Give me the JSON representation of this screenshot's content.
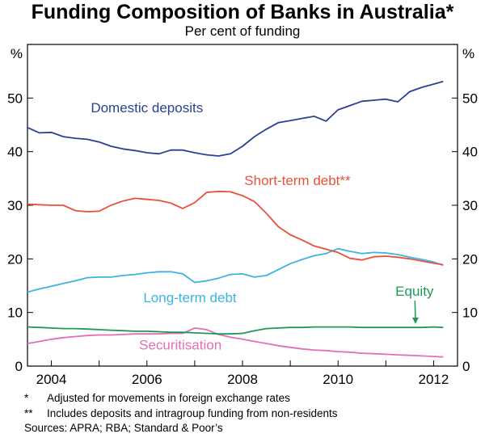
{
  "title": "Funding Composition of Banks in Australia*",
  "subtitle": "Per cent of funding",
  "footnotes": [
    {
      "mark": "*",
      "text": "Adjusted for movements in foreign exchange rates"
    },
    {
      "mark": "**",
      "text": "Includes deposits and intragroup funding from non-residents"
    }
  ],
  "sources": "Sources: APRA; RBA; Standard & Poor’s",
  "chart_data": {
    "type": "line",
    "ylabel_left": "%",
    "ylabel_right": "%",
    "ylim": [
      0,
      60
    ],
    "yticks": [
      0,
      10,
      20,
      30,
      40,
      50
    ],
    "xlim": [
      2003.5,
      2012.5
    ],
    "xticks": [
      2004,
      2006,
      2008,
      2010,
      2012
    ],
    "xtick_labels": [
      "2004",
      "2006",
      "2008",
      "2010",
      "2012"
    ],
    "grid": false,
    "series": [
      {
        "name": "Domestic deposits",
        "color": "#2b3f94",
        "x": [
          2003.5,
          2003.75,
          2004,
          2004.25,
          2004.5,
          2004.75,
          2005,
          2005.25,
          2005.5,
          2005.75,
          2006,
          2006.25,
          2006.5,
          2006.75,
          2007,
          2007.25,
          2007.5,
          2007.75,
          2008,
          2008.25,
          2008.5,
          2008.75,
          2009,
          2009.25,
          2009.5,
          2009.75,
          2010,
          2010.25,
          2010.5,
          2010.75,
          2011,
          2011.25,
          2011.5,
          2011.75,
          2012,
          2012.2
        ],
        "y": [
          44.5,
          43.5,
          43.6,
          42.8,
          42.5,
          42.3,
          41.8,
          41.0,
          40.5,
          40.2,
          39.8,
          39.6,
          40.3,
          40.3,
          39.8,
          39.4,
          39.2,
          39.6,
          41.0,
          42.8,
          44.2,
          45.4,
          45.8,
          46.2,
          46.6,
          45.7,
          47.8,
          48.6,
          49.4,
          49.6,
          49.8,
          49.3,
          51.2,
          52.0,
          52.6,
          53.1
        ]
      },
      {
        "name": "Short-term debt**",
        "color": "#e8503e",
        "x": [
          2003.5,
          2003.75,
          2004,
          2004.25,
          2004.5,
          2004.75,
          2005,
          2005.25,
          2005.5,
          2005.75,
          2006,
          2006.25,
          2006.5,
          2006.75,
          2007,
          2007.25,
          2007.5,
          2007.75,
          2008,
          2008.25,
          2008.5,
          2008.75,
          2009,
          2009.25,
          2009.5,
          2009.75,
          2010,
          2010.25,
          2010.5,
          2010.75,
          2011,
          2011.25,
          2011.5,
          2011.75,
          2012,
          2012.2
        ],
        "y": [
          30.2,
          30.1,
          30.0,
          30.0,
          29.0,
          28.8,
          28.9,
          30.0,
          30.8,
          31.3,
          31.1,
          30.9,
          30.4,
          29.4,
          30.5,
          32.4,
          32.6,
          32.5,
          31.8,
          30.7,
          28.5,
          26.0,
          24.5,
          23.5,
          22.4,
          21.8,
          21.2,
          20.1,
          19.8,
          20.4,
          20.5,
          20.3,
          20.0,
          19.6,
          19.2,
          18.9
        ]
      },
      {
        "name": "Long-term debt",
        "color": "#3ab4e2",
        "x": [
          2003.5,
          2003.75,
          2004,
          2004.25,
          2004.5,
          2004.75,
          2005,
          2005.25,
          2005.5,
          2005.75,
          2006,
          2006.25,
          2006.5,
          2006.75,
          2007,
          2007.25,
          2007.5,
          2007.75,
          2008,
          2008.25,
          2008.5,
          2008.75,
          2009,
          2009.25,
          2009.5,
          2009.75,
          2010,
          2010.25,
          2010.5,
          2010.75,
          2011,
          2011.25,
          2011.5,
          2011.75,
          2012,
          2012.2
        ],
        "y": [
          13.8,
          14.4,
          14.9,
          15.4,
          15.9,
          16.5,
          16.6,
          16.6,
          16.9,
          17.1,
          17.4,
          17.6,
          17.6,
          17.2,
          15.6,
          15.9,
          16.4,
          17.1,
          17.2,
          16.6,
          16.9,
          18.0,
          19.1,
          19.9,
          20.6,
          21.0,
          21.9,
          21.4,
          21.0,
          21.2,
          21.1,
          20.8,
          20.3,
          19.9,
          19.4,
          18.8
        ]
      },
      {
        "name": "Equity",
        "color": "#1e9a55",
        "x": [
          2003.5,
          2003.75,
          2004,
          2004.25,
          2004.5,
          2004.75,
          2005,
          2005.25,
          2005.5,
          2005.75,
          2006,
          2006.25,
          2006.5,
          2006.75,
          2007,
          2007.25,
          2007.5,
          2007.75,
          2008,
          2008.25,
          2008.5,
          2008.75,
          2009,
          2009.25,
          2009.5,
          2009.75,
          2010,
          2010.25,
          2010.5,
          2010.75,
          2011,
          2011.25,
          2011.5,
          2011.75,
          2012,
          2012.2
        ],
        "y": [
          7.3,
          7.2,
          7.1,
          7.0,
          7.0,
          6.9,
          6.8,
          6.7,
          6.6,
          6.5,
          6.5,
          6.4,
          6.3,
          6.3,
          6.2,
          6.1,
          6.0,
          6.0,
          6.1,
          6.6,
          7.0,
          7.1,
          7.2,
          7.2,
          7.3,
          7.3,
          7.3,
          7.3,
          7.2,
          7.2,
          7.2,
          7.2,
          7.2,
          7.2,
          7.3,
          7.2
        ]
      },
      {
        "name": "Securitisation",
        "color": "#e26fb5",
        "x": [
          2003.5,
          2003.75,
          2004,
          2004.25,
          2004.5,
          2004.75,
          2005,
          2005.25,
          2005.5,
          2005.75,
          2006,
          2006.25,
          2006.5,
          2006.75,
          2007,
          2007.25,
          2007.5,
          2007.75,
          2008,
          2008.25,
          2008.5,
          2008.75,
          2009,
          2009.25,
          2009.5,
          2009.75,
          2010,
          2010.25,
          2010.5,
          2010.75,
          2011,
          2011.25,
          2011.5,
          2011.75,
          2012,
          2012.2
        ],
        "y": [
          4.2,
          4.6,
          5.0,
          5.3,
          5.5,
          5.7,
          5.8,
          5.8,
          5.9,
          6.0,
          6.0,
          6.0,
          6.1,
          6.1,
          7.1,
          6.8,
          5.9,
          5.4,
          5.0,
          4.6,
          4.2,
          3.8,
          3.5,
          3.2,
          3.0,
          2.9,
          2.7,
          2.6,
          2.4,
          2.3,
          2.2,
          2.1,
          2.0,
          1.9,
          1.8,
          1.7
        ]
      }
    ],
    "annotations": [
      {
        "text": "Domestic deposits",
        "series": "Domestic deposits",
        "x": 2006.0,
        "y": 47.3
      },
      {
        "text": "Short-term debt**",
        "series": "Short-term debt**",
        "x": 2009.15,
        "y": 33.8
      },
      {
        "text": "Long-term debt",
        "series": "Long-term debt",
        "x": 2006.9,
        "y": 11.9
      },
      {
        "text": "Equity",
        "series": "Equity",
        "x": 2011.6,
        "y": 13.1,
        "arrow_to": [
          2011.62,
          7.4
        ]
      },
      {
        "text": "Securitisation",
        "series": "Securitisation",
        "x": 2006.7,
        "y": 3.1
      }
    ]
  }
}
